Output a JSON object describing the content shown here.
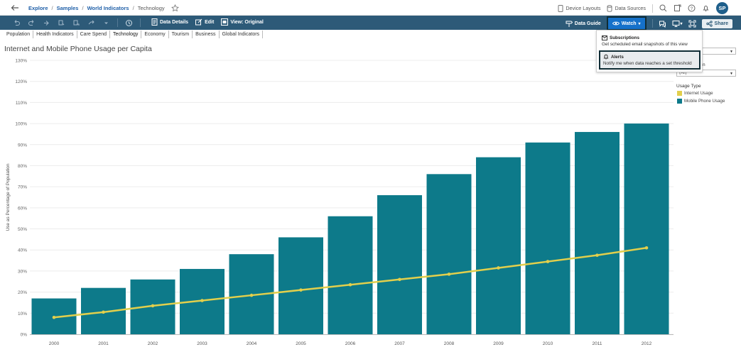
{
  "breadcrumb": {
    "items": [
      "Explore",
      "Samples",
      "World Indicators"
    ],
    "separator": "/",
    "current": "Technology"
  },
  "top_right": {
    "device_layouts": "Device Layouts",
    "data_sources": "Data Sources",
    "avatar_initials": "SP"
  },
  "toolbar": {
    "data_details": "Data Details",
    "edit": "Edit",
    "view": "View: Original",
    "data_guide": "Data Guide",
    "watch": "Watch",
    "share": "Share"
  },
  "tabs": [
    "Population",
    "Health Indicators",
    "Care Spend",
    "Technology",
    "Economy",
    "Tourism",
    "Business",
    "Global Indicators"
  ],
  "active_tab": "Technology",
  "watch_menu": {
    "subscriptions_title": "Subscriptions",
    "subscriptions_desc": "Get scheduled email snapshots of this view",
    "alerts_title": "Alerts",
    "alerts_desc": "Notify me when data reaches a set threshold"
  },
  "right_panel": {
    "filter_label_partial": "ion",
    "filter_value_partial": "(All)",
    "legend_title": "Usage Type",
    "legend_items": [
      {
        "label": "Internet Usage",
        "color": "#e2cf4c"
      },
      {
        "label": "Mobile Phone Usage",
        "color": "#0d7a8a"
      }
    ]
  },
  "chart_title": "Internet and Mobile Phone Usage per Capita",
  "chart_data": {
    "type": "bar",
    "title": "Internet and Mobile Phone Usage per Capita",
    "xlabel": "",
    "ylabel": "Use as Percentage of Population",
    "categories": [
      "2000",
      "2001",
      "2002",
      "2003",
      "2004",
      "2005",
      "2006",
      "2007",
      "2008",
      "2009",
      "2010",
      "2011",
      "2012"
    ],
    "series": [
      {
        "name": "Mobile Phone Usage",
        "type": "bar",
        "color": "#0d7a8a",
        "values": [
          17,
          22,
          26,
          31,
          38,
          46,
          56,
          66,
          76,
          84,
          91,
          96,
          100
        ]
      },
      {
        "name": "Internet Usage",
        "type": "line",
        "color": "#e2cf4c",
        "values": [
          8,
          10.5,
          13.5,
          16,
          18.5,
          21,
          23.5,
          26,
          28.5,
          31.5,
          34.5,
          37.5,
          41
        ]
      }
    ],
    "yticks": [
      "0%",
      "10%",
      "20%",
      "30%",
      "40%",
      "50%",
      "60%",
      "70%",
      "80%",
      "90%",
      "100%",
      "110%",
      "120%",
      "130%"
    ],
    "ylim": [
      0,
      130
    ],
    "grid": true
  }
}
